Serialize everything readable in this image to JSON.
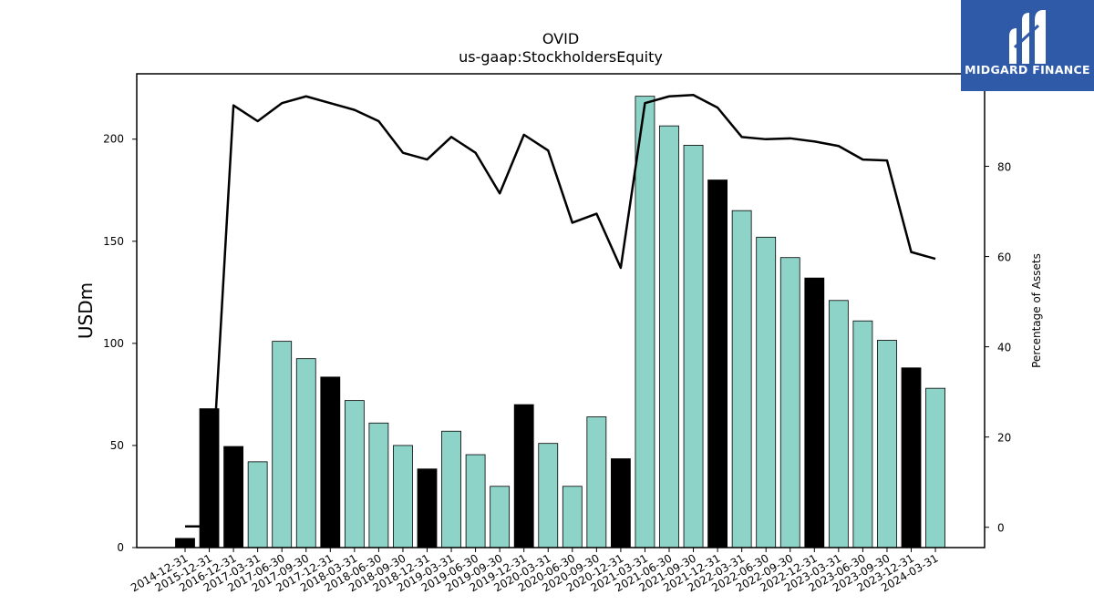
{
  "logo": {
    "text": "MIDGARD FINANCE",
    "bg_color": "#2e5aa8"
  },
  "chart_data": {
    "type": "bar",
    "title": "OVID",
    "subtitle": "us-gaap:StockholdersEquity",
    "ylabel": "USDm",
    "y2label": "Percentage of Assets",
    "ylim": [
      0,
      232
    ],
    "y2lim": [
      -4.5,
      100.5
    ],
    "yticks": [
      0,
      50,
      100,
      150,
      200
    ],
    "y2ticks": [
      0,
      20,
      40,
      60,
      80
    ],
    "grid": false,
    "bar_colors": {
      "default": "#8dd3c7",
      "q4": "#000000",
      "edge": "#000000"
    },
    "line_color": "#000000",
    "categories": [
      "2014-12-31",
      "2015-12-31",
      "2016-12-31",
      "2017-03-31",
      "2017-06-30",
      "2017-09-30",
      "2017-12-31",
      "2018-03-31",
      "2018-06-30",
      "2018-09-30",
      "2018-12-31",
      "2019-03-31",
      "2019-06-30",
      "2019-09-30",
      "2019-12-31",
      "2020-03-31",
      "2020-06-30",
      "2020-09-30",
      "2020-12-31",
      "2021-03-31",
      "2021-06-30",
      "2021-09-30",
      "2021-12-31",
      "2022-03-31",
      "2022-06-30",
      "2022-09-30",
      "2022-12-31",
      "2023-03-31",
      "2023-06-30",
      "2023-09-30",
      "2023-12-31",
      "2024-03-31"
    ],
    "series": [
      {
        "type": "bar",
        "axis": "left",
        "values": [
          4.5,
          68,
          49.5,
          42,
          101,
          92.5,
          83.5,
          72,
          61,
          50,
          38.5,
          57,
          45.5,
          30,
          70,
          51,
          30,
          64,
          43.5,
          221,
          206.5,
          197,
          180,
          165,
          152,
          142,
          132,
          121,
          111,
          101.5,
          88,
          78
        ]
      },
      {
        "type": "line",
        "axis": "right",
        "values": [
          0.2,
          0.2,
          93.5,
          90,
          94,
          95.5,
          94,
          92.5,
          90,
          83,
          81.5,
          86.5,
          83,
          74,
          87,
          83.5,
          67.5,
          69.5,
          57.5,
          94,
          95.5,
          95.8,
          93,
          86.5,
          86,
          86.2,
          85.5,
          84.5,
          81.5,
          81.3,
          61,
          59.5
        ]
      }
    ]
  }
}
